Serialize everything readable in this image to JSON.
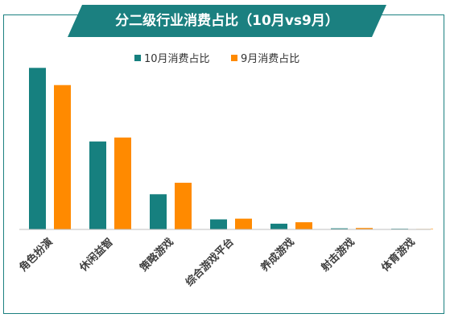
{
  "colors": {
    "frame": "#1b8080",
    "banner": "#1b8080",
    "series_oct": "#16807f",
    "series_sep": "#ff8a00",
    "axis": "#bfbfbf"
  },
  "chart_data": {
    "type": "bar",
    "title": "分二级行业消费占比（10月vs9月）",
    "categories": [
      "角色扮演",
      "休闲益智",
      "策略游戏",
      "综合游戏平台",
      "养成游戏",
      "射击游戏",
      "体育游戏"
    ],
    "series": [
      {
        "name": "10月消费占比",
        "values": [
          45.0,
          24.5,
          9.8,
          2.8,
          1.6,
          0.3,
          0.2
        ]
      },
      {
        "name": "9月消费占比",
        "values": [
          40.2,
          25.6,
          13.0,
          3.0,
          2.0,
          0.4,
          0.1
        ]
      }
    ],
    "ylim": [
      0,
      50
    ],
    "grid": false,
    "legend_position": "top-center",
    "y_axis_visible": false
  }
}
